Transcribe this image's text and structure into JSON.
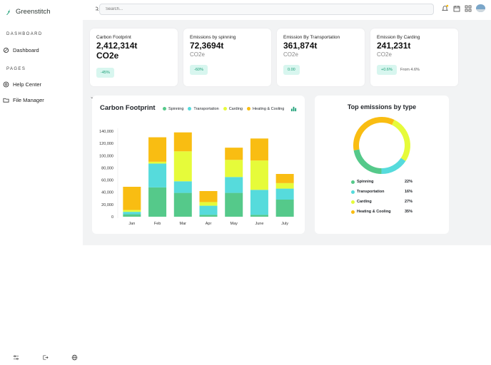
{
  "app": {
    "name": "Greenstitch"
  },
  "sidebar": {
    "sections": [
      {
        "label": "DASHBOARD",
        "items": [
          {
            "label": "Dashboard",
            "icon": "leaf-icon"
          }
        ]
      },
      {
        "label": "PAGES",
        "items": [
          {
            "label": "Help Center",
            "icon": "help-icon"
          },
          {
            "label": "File Manager",
            "icon": "folder-icon"
          }
        ]
      }
    ],
    "bottom_icons": [
      "sliders-icon",
      "logout-icon",
      "globe-icon"
    ]
  },
  "search": {
    "placeholder": "Search..."
  },
  "topbar_icons": [
    "bell-icon",
    "calendar-icon",
    "grid-icon",
    "avatar"
  ],
  "cards": [
    {
      "title": "Carbon Footprint",
      "value": "2,412,314t",
      "unit": "CO2e",
      "badge": "-45%",
      "extra": ""
    },
    {
      "title": "Emissions by spinning",
      "value": "72,3694t",
      "unit": "CO2e",
      "badge": "-60%",
      "extra": ""
    },
    {
      "title": "Emission By Transportation",
      "value": "361,874t",
      "unit": "CO2e",
      "badge": "0.00",
      "extra": ""
    },
    {
      "title": "Emission By Carding",
      "value": "241,231t",
      "unit": "CO2e",
      "badge": "+0.6%",
      "extra": "From 4.6%"
    }
  ],
  "colors": {
    "spinning": "#55c98a",
    "transportation": "#56dbdc",
    "carding": "#e6fb3a",
    "heating": "#f9bd12",
    "accent": "#1a9e75"
  },
  "chart_data": {
    "type": "bar",
    "title": "Carbon Footprint",
    "stacked": true,
    "categories": [
      "Jan",
      "Feb",
      "Mar",
      "Apr",
      "May",
      "June",
      "July"
    ],
    "series": [
      {
        "name": "Spinning",
        "values": [
          4000,
          48000,
          39000,
          3000,
          39000,
          3000,
          28000
        ]
      },
      {
        "name": "Transportation",
        "values": [
          4000,
          39000,
          19000,
          15000,
          26000,
          41000,
          18000
        ]
      },
      {
        "name": "Carding",
        "values": [
          3000,
          3000,
          49000,
          6000,
          28000,
          48000,
          9000
        ]
      },
      {
        "name": "Heating & Cooling",
        "values": [
          38000,
          40000,
          31000,
          18000,
          20000,
          36000,
          15000
        ]
      }
    ],
    "yticks": [
      "140,000",
      "120,000",
      "100,000",
      "80,000",
      "60,000",
      "40,000",
      "20,000",
      "0"
    ],
    "ylim": [
      0,
      140000
    ]
  },
  "donut": {
    "title": "Top emissions by type",
    "items": [
      {
        "label": "Spinning",
        "value": 22,
        "pct": "22%"
      },
      {
        "label": "Transportation",
        "value": 16,
        "pct": "16%"
      },
      {
        "label": "Carding",
        "value": 27,
        "pct": "27%"
      },
      {
        "label": "Heating & Cooling",
        "value": 35,
        "pct": "35%"
      }
    ]
  }
}
